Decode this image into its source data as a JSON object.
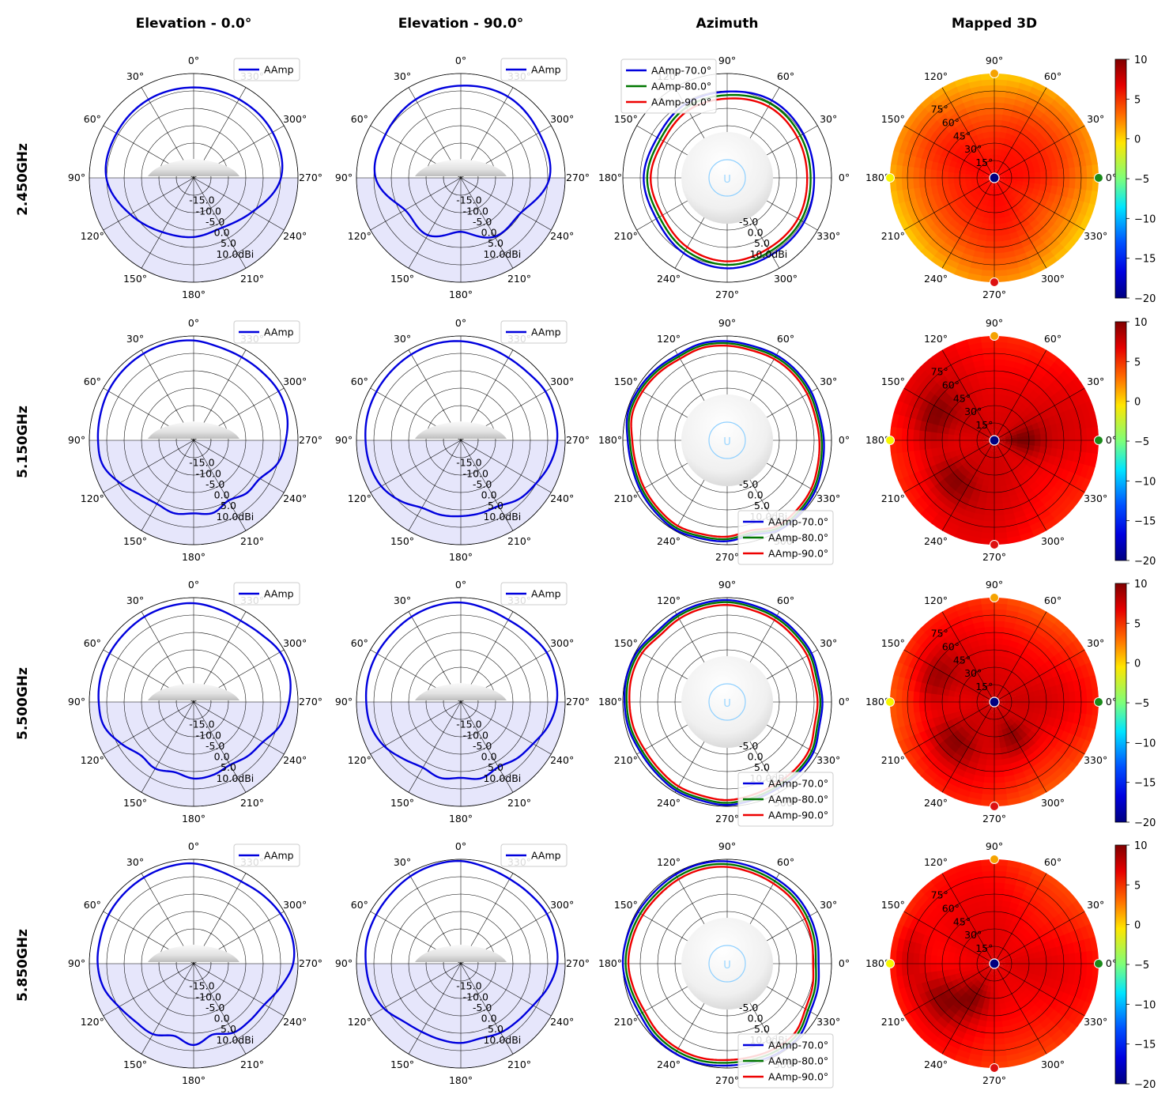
{
  "column_titles": [
    "Elevation - 0.0°",
    "Elevation - 90.0°",
    "Azimuth",
    "Mapped 3D"
  ],
  "row_titles": [
    "2.450GHz",
    "5.150GHz",
    "5.500GHz",
    "5.850GHz"
  ],
  "elevation_angle_labels": [
    "0°",
    "30°",
    "60°",
    "90°",
    "120°",
    "150°",
    "180°",
    "210°",
    "240°",
    "270°",
    "300°",
    "330°"
  ],
  "azimuth_angle_labels": [
    "0°",
    "30°",
    "60°",
    "90°",
    "120°",
    "150°",
    "180°",
    "210°",
    "240°",
    "270°",
    "300°",
    "330°"
  ],
  "radial_tick_labels": [
    "-15.0",
    "-10.0",
    "-5.0",
    "0.0",
    "5.0",
    "10.0dBi"
  ],
  "mapped_radial_labels": [
    "15°",
    "30°",
    "45°",
    "60°",
    "75°"
  ],
  "colorbar_ticks": [
    "10",
    "5",
    "0",
    "−5",
    "−10",
    "−15",
    "−20"
  ],
  "colors": {
    "aamp": "#0000dd",
    "aamp_70": "#0000dd",
    "aamp_80": "#007700",
    "aamp_90": "#ee0000",
    "lower_shade": "#e6e6fb"
  },
  "chart_data": [
    {
      "type": "polar-line",
      "column_title": "Elevation - 0.0°",
      "rlim": [
        -20,
        10
      ],
      "radial_ticks": [
        -15,
        -10,
        -5,
        0,
        5,
        10
      ],
      "legend_location": "upper right",
      "series": [
        {
          "name": "AAmp"
        }
      ],
      "frequencies": [
        {
          "frequency": "2.450GHz",
          "angles": [
            0,
            30,
            60,
            90,
            120,
            150,
            180,
            210,
            240,
            270,
            300,
            330,
            360
          ],
          "values": [
            6,
            6,
            5.6,
            5.1,
            1,
            -2,
            -3,
            -3.5,
            -0.5,
            5.1,
            6.2,
            6.1,
            6
          ]
        },
        {
          "frequency": "5.150GHz",
          "angles": [
            0,
            15,
            30,
            45,
            60,
            75,
            90,
            105,
            120,
            135,
            150,
            165,
            180,
            195,
            210,
            225,
            240,
            255,
            270,
            285,
            300,
            315,
            330,
            345,
            360
          ],
          "values": [
            8.7,
            8.9,
            8.8,
            8.6,
            8.3,
            7.8,
            7.5,
            7.1,
            4.5,
            2,
            1.1,
            1.7,
            1,
            1.6,
            0,
            1.5,
            2,
            5.1,
            6.5,
            7.8,
            8.2,
            7.8,
            7.6,
            7.8,
            8.7
          ]
        },
        {
          "frequency": "5.500GHz",
          "angles": [
            0,
            15,
            30,
            45,
            60,
            75,
            90,
            105,
            120,
            135,
            150,
            165,
            180,
            195,
            210,
            225,
            240,
            255,
            270,
            285,
            300,
            315,
            330,
            345,
            360
          ],
          "values": [
            8.4,
            8.4,
            8.3,
            8,
            7.9,
            7.7,
            7.3,
            6.7,
            4,
            1.6,
            2.1,
            0.9,
            2,
            1.7,
            0.9,
            2,
            3,
            5.8,
            7.4,
            8.6,
            8.7,
            7.5,
            7,
            7.6,
            8.4
          ]
        },
        {
          "frequency": "5.850GHz",
          "angles": [
            0,
            15,
            30,
            45,
            60,
            75,
            90,
            105,
            120,
            135,
            150,
            165,
            180,
            195,
            210,
            225,
            240,
            255,
            270,
            285,
            300,
            315,
            330,
            345,
            360
          ],
          "values": [
            8.8,
            8.8,
            8.6,
            8.4,
            8.2,
            7.8,
            7.6,
            6.8,
            4.8,
            3.6,
            3.4,
            1.5,
            3.4,
            1.1,
            2.9,
            3,
            3.5,
            5.9,
            8.6,
            9.3,
            8.8,
            8,
            7.3,
            7.7,
            8.8
          ]
        }
      ]
    },
    {
      "type": "polar-line",
      "column_title": "Elevation - 90.0°",
      "rlim": [
        -20,
        10
      ],
      "radial_ticks": [
        -15,
        -10,
        -5,
        0,
        5,
        10
      ],
      "legend_location": "upper right",
      "series": [
        {
          "name": "AAmp"
        }
      ],
      "frequencies": [
        {
          "frequency": "2.450GHz",
          "angles": [
            0,
            30,
            60,
            90,
            120,
            150,
            180,
            210,
            240,
            270,
            300,
            330,
            360
          ],
          "values": [
            6.5,
            6,
            5,
            4.5,
            -1.5,
            -1,
            -4.5,
            -0.5,
            0,
            5.5,
            6,
            7,
            6.5
          ]
        },
        {
          "frequency": "5.150GHz",
          "angles": [
            0,
            15,
            30,
            45,
            60,
            75,
            90,
            105,
            120,
            135,
            150,
            165,
            180,
            195,
            210,
            225,
            240,
            255,
            270,
            285,
            300,
            315,
            330,
            345,
            360
          ],
          "values": [
            8.5,
            8.7,
            8.5,
            8.2,
            8,
            7.8,
            7.4,
            7.1,
            6.4,
            4.6,
            2.4,
            2.2,
            1.8,
            1.7,
            1.8,
            3.8,
            4.9,
            6.5,
            7.7,
            7.9,
            8.1,
            7.4,
            7.4,
            7.9,
            8.5
          ]
        },
        {
          "frequency": "5.500GHz",
          "angles": [
            0,
            15,
            30,
            45,
            60,
            75,
            90,
            105,
            120,
            135,
            150,
            165,
            180,
            195,
            210,
            225,
            240,
            255,
            270,
            285,
            300,
            315,
            330,
            345,
            360
          ],
          "values": [
            8.6,
            8.6,
            8.3,
            7.9,
            7.8,
            7.6,
            7.2,
            6.8,
            5.4,
            3.2,
            1.8,
            2.6,
            1.8,
            2.7,
            1.6,
            2.9,
            4,
            6.1,
            7.6,
            8.1,
            8.5,
            7.7,
            7.3,
            7.8,
            8.6
          ]
        },
        {
          "frequency": "5.850GHz",
          "angles": [
            0,
            15,
            30,
            45,
            60,
            75,
            90,
            105,
            120,
            135,
            150,
            165,
            180,
            195,
            210,
            225,
            240,
            255,
            270,
            285,
            300,
            315,
            330,
            345,
            360
          ],
          "values": [
            9.5,
            9.4,
            9,
            8.4,
            8.1,
            7.9,
            7.3,
            6.8,
            5.6,
            3.4,
            2.6,
            2.6,
            2.8,
            2.2,
            2.9,
            3.2,
            4,
            6,
            7.7,
            8.1,
            8.6,
            8.2,
            8.1,
            8.6,
            9.5
          ]
        }
      ]
    },
    {
      "type": "polar-line",
      "column_title": "Azimuth",
      "rlim": [
        -20,
        10
      ],
      "radial_ticks": [
        -5,
        0,
        5,
        10
      ],
      "series": [
        {
          "name": "AAmp-70.0°"
        },
        {
          "name": "AAmp-80.0°"
        },
        {
          "name": "AAmp-90.0°"
        }
      ],
      "frequencies": [
        {
          "frequency": "2.450GHz",
          "legend_location": "upper left",
          "angles": [
            0,
            30,
            60,
            90,
            120,
            150,
            180,
            210,
            240,
            270,
            300,
            330,
            360
          ],
          "series_values": [
            [
              5,
              5.3,
              5.7,
              4.8,
              4.4,
              3.2,
              4,
              3.5,
              5,
              6,
              5.5,
              5.5,
              5
            ],
            [
              4,
              4.3,
              4.7,
              3.8,
              3.4,
              2.2,
              3,
              2.5,
              4,
              5,
              4.5,
              4.5,
              4
            ],
            [
              3,
              3.3,
              3.7,
              2.8,
              2.4,
              1.2,
              2,
              1.5,
              3,
              4,
              3.5,
              3.5,
              3
            ]
          ]
        },
        {
          "frequency": "5.150GHz",
          "legend_location": "lower right",
          "angles": [
            0,
            15,
            30,
            45,
            60,
            75,
            90,
            105,
            120,
            135,
            150,
            165,
            180,
            195,
            210,
            225,
            240,
            255,
            270,
            285,
            300,
            315,
            330,
            345,
            360
          ],
          "series_values": [
            [
              7.8,
              7.5,
              7.9,
              8.2,
              8.3,
              8.1,
              8.5,
              8.8,
              8.4,
              8.9,
              9.4,
              9.6,
              8.6,
              8.4,
              8.8,
              9.2,
              9.7,
              9.2,
              9,
              8.1,
              9.8,
              9.6,
              9.2,
              8.3,
              7.8
            ],
            [
              7.2,
              6.9,
              7.3,
              7.6,
              7.7,
              7.5,
              7.9,
              8.2,
              7.8,
              8.3,
              8.8,
              9,
              8,
              7.8,
              8.2,
              8.6,
              9.1,
              8.6,
              8.4,
              7.5,
              9.2,
              9,
              8.6,
              7.7,
              7.2
            ],
            [
              6.5,
              6.2,
              6.6,
              6.9,
              7,
              6.8,
              7.2,
              7.5,
              7.1,
              7.6,
              8.1,
              8.3,
              7.3,
              7.1,
              7.5,
              7.9,
              8.4,
              7.9,
              7.7,
              6.8,
              8.5,
              8.3,
              7.9,
              7,
              6.5
            ]
          ]
        },
        {
          "frequency": "5.500GHz",
          "legend_location": "lower right",
          "angles": [
            0,
            15,
            30,
            45,
            60,
            75,
            90,
            105,
            120,
            135,
            150,
            165,
            180,
            195,
            210,
            225,
            240,
            255,
            270,
            285,
            300,
            315,
            330,
            345,
            360
          ],
          "series_values": [
            [
              7.4,
              7.2,
              8,
              8.2,
              8.6,
              8.8,
              9.3,
              9.2,
              9,
              8.6,
              9.6,
              9.8,
              9.5,
              9.3,
              8.8,
              8.9,
              9.4,
              9.3,
              9.6,
              9.1,
              8.8,
              8.9,
              8.7,
              7.4,
              7.4
            ],
            [
              6.8,
              6.6,
              7.4,
              7.6,
              8,
              8.2,
              8.7,
              8.6,
              8.4,
              8,
              9,
              9.2,
              8.9,
              8.7,
              8.2,
              8.3,
              8.8,
              8.7,
              9,
              8.5,
              8.2,
              8.3,
              8.1,
              6.8,
              6.8
            ],
            [
              6,
              5.8,
              6.6,
              6.8,
              7.2,
              7.4,
              7.9,
              7.8,
              7.6,
              7.2,
              8.2,
              8.4,
              8.1,
              7.9,
              7.4,
              7.5,
              8,
              7.9,
              8.2,
              7.7,
              7.4,
              7.5,
              7.3,
              6,
              6
            ]
          ]
        },
        {
          "frequency": "5.850GHz",
          "legend_location": "lower right",
          "angles": [
            0,
            15,
            30,
            45,
            60,
            75,
            90,
            105,
            120,
            135,
            150,
            165,
            180,
            195,
            210,
            225,
            240,
            255,
            270,
            285,
            300,
            315,
            330,
            345,
            360
          ],
          "series_values": [
            [
              6.3,
              6.8,
              7.4,
              7.9,
              8.2,
              8.7,
              9.4,
              9.7,
              9.6,
              9.4,
              9.6,
              9.8,
              10,
              9.4,
              9,
              9.6,
              9.8,
              9.7,
              9.3,
              9.3,
              9.6,
              9.4,
              7.6,
              7,
              6.3
            ],
            [
              5.5,
              6,
              6.6,
              7.1,
              7.4,
              7.9,
              8.6,
              8.9,
              8.8,
              8.6,
              8.8,
              9,
              9.2,
              8.6,
              8.2,
              8.8,
              9,
              8.9,
              8.5,
              8.5,
              8.8,
              8.6,
              6.8,
              6.2,
              5.5
            ],
            [
              4.7,
              5.2,
              5.8,
              6.3,
              6.6,
              7.1,
              7.8,
              8.1,
              8,
              7.8,
              8,
              8.2,
              8.4,
              7.8,
              7.4,
              8,
              8.2,
              8.1,
              7.7,
              7.7,
              8,
              7.8,
              6,
              5.4,
              4.7
            ]
          ]
        }
      ]
    },
    {
      "type": "heatmap",
      "column_title": "Mapped 3D",
      "colorbar_range": [
        -20,
        10
      ],
      "colorbar_ticks": [
        10,
        5,
        0,
        -5,
        -10,
        -15,
        -20
      ],
      "radial_ticks_deg": [
        15,
        30,
        45,
        60,
        75
      ],
      "frequencies": [
        {
          "frequency": "2.450GHz",
          "center_dBi": 6,
          "rim_dBi": 1,
          "dark_lobes": []
        },
        {
          "frequency": "5.150GHz",
          "center_dBi": 7.5,
          "rim_dBi": 6,
          "dark_lobes": [
            {
              "azimuth_deg": 160,
              "elevation_deg": 55
            },
            {
              "azimuth_deg": 225,
              "elevation_deg": 50
            },
            {
              "azimuth_deg": 0,
              "elevation_deg": 25
            }
          ]
        },
        {
          "frequency": "5.500GHz",
          "center_dBi": 7.5,
          "rim_dBi": 4.5,
          "dark_lobes": [
            {
              "azimuth_deg": 160,
              "elevation_deg": 55
            },
            {
              "azimuth_deg": 225,
              "elevation_deg": 50
            },
            {
              "azimuth_deg": 300,
              "elevation_deg": 35
            }
          ]
        },
        {
          "frequency": "5.850GHz",
          "center_dBi": 7,
          "rim_dBi": 5,
          "dark_lobes": [
            {
              "azimuth_deg": 175,
              "elevation_deg": 75
            },
            {
              "azimuth_deg": 215,
              "elevation_deg": 55
            },
            {
              "azimuth_deg": 240,
              "elevation_deg": 35
            }
          ]
        }
      ]
    }
  ]
}
